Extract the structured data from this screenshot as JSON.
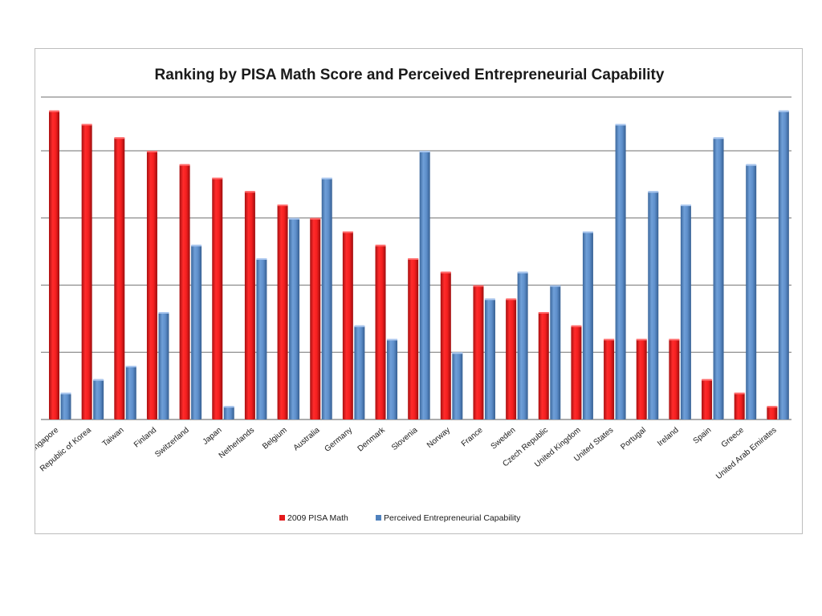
{
  "chart_data": {
    "type": "bar",
    "title": "Ranking by PISA Math Score and Perceived Entrepreneurial Capability",
    "xlabel": "",
    "ylabel": "",
    "ylim": [
      0,
      24
    ],
    "yticks": [
      5,
      10,
      15,
      20
    ],
    "y_tick_labels_shown": false,
    "grid": true,
    "legend_position": "bottom-center",
    "categories": [
      "Singapore",
      "Republic of Korea",
      "Taiwan",
      "Finland",
      "Switzerland",
      "Japan",
      "Netherlands",
      "Belgium",
      "Australia",
      "Germany",
      "Denmark",
      "Slovenia",
      "Norway",
      "France",
      "Sweden",
      "Czech Republic",
      "United Kingdom",
      "United States",
      "Portugal",
      "Ireland",
      "Spain",
      "Greece",
      "United Arab Emirates"
    ],
    "series": [
      {
        "name": "2009 PISA Math",
        "color": "#e41a1c",
        "values": [
          23,
          22,
          21,
          20,
          19,
          18,
          17,
          16,
          15,
          14,
          13,
          12,
          11,
          10,
          9,
          8,
          7,
          6,
          6,
          6,
          3,
          2,
          1
        ]
      },
      {
        "name": "Perceived Entrepreneurial Capability",
        "color": "#4f81bd",
        "values": [
          2,
          3,
          4,
          8,
          13,
          1,
          12,
          15,
          18,
          7,
          6,
          20,
          5,
          9,
          11,
          10,
          14,
          22,
          17,
          16,
          21,
          19,
          23
        ]
      }
    ]
  }
}
